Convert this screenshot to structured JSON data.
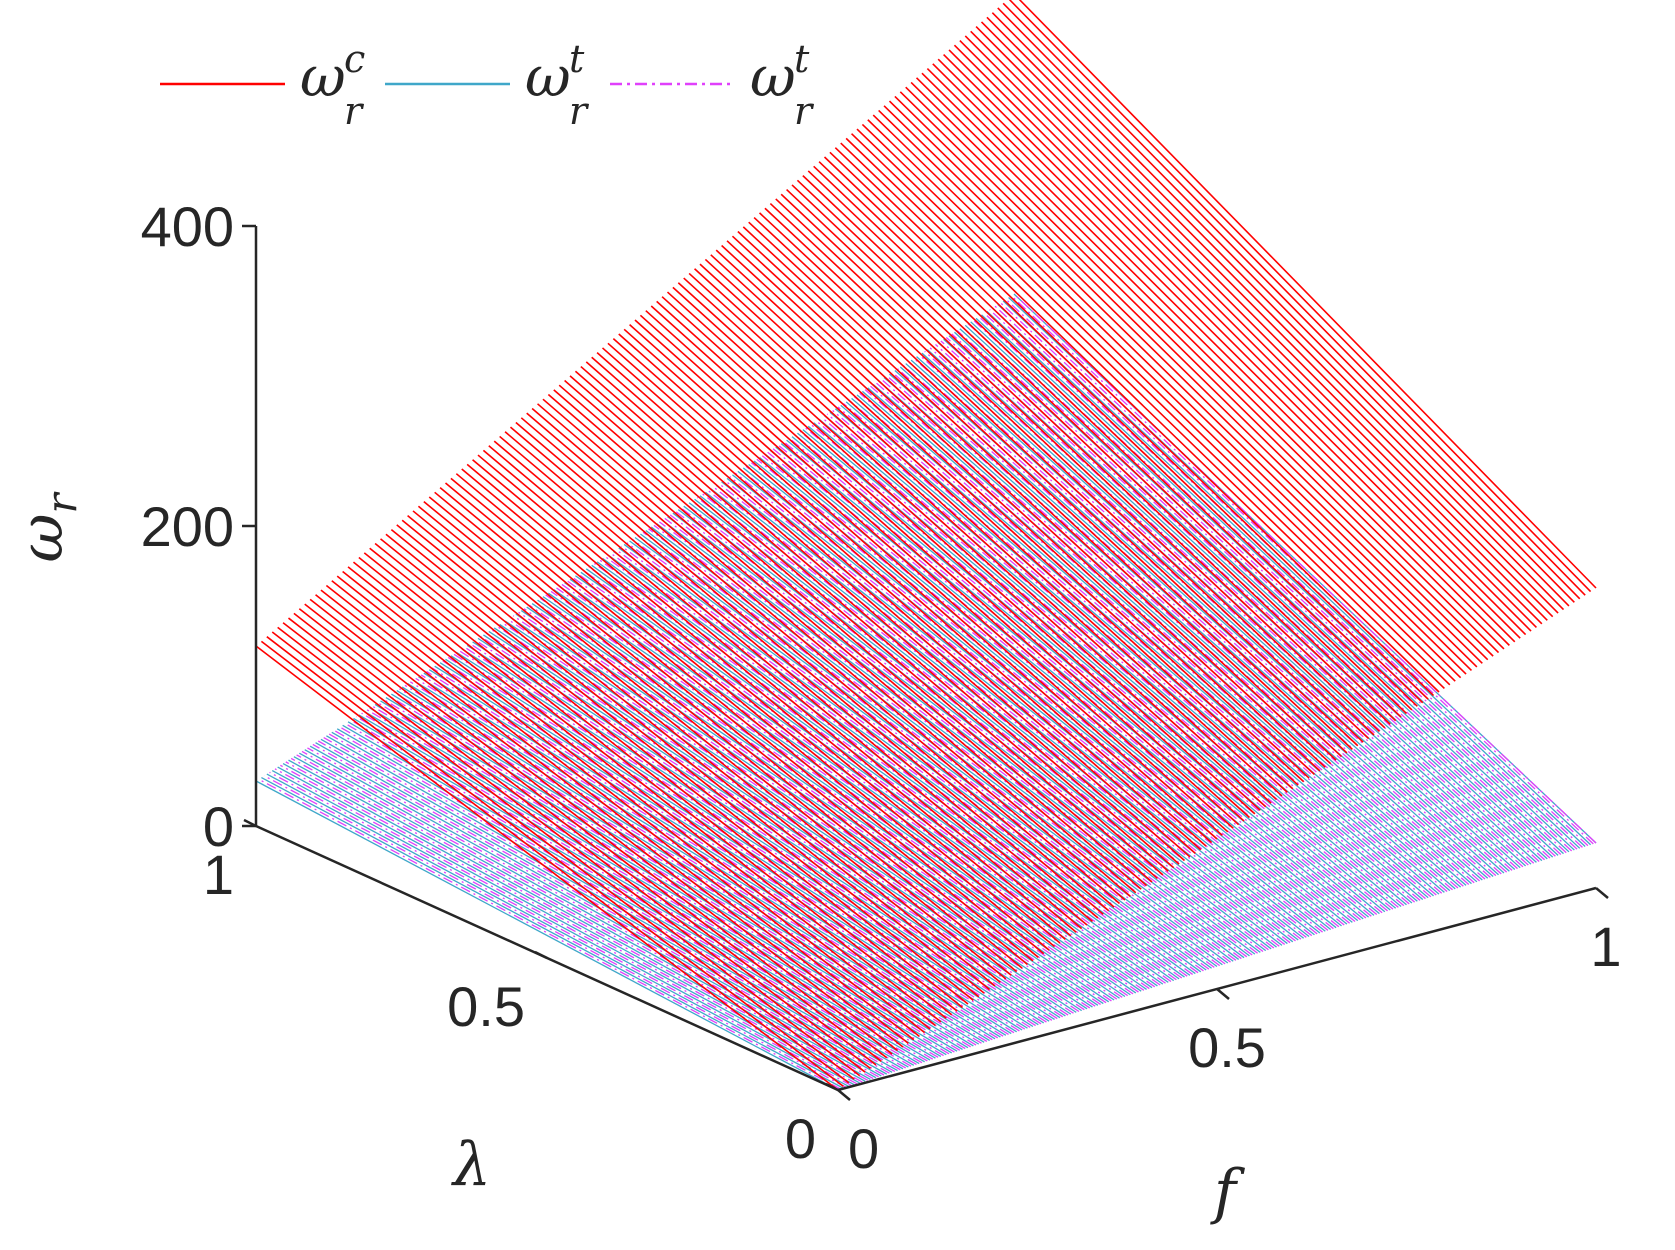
{
  "chart_data": {
    "type": "mesh3d",
    "title": "",
    "x_axis": {
      "label": "f",
      "ticks": [
        0,
        0.5,
        1
      ],
      "tick_labels": [
        "0",
        "0.5",
        "1"
      ],
      "range": [
        0,
        1
      ]
    },
    "y_axis": {
      "label": "λ",
      "ticks": [
        0,
        0.5,
        1
      ],
      "tick_labels": [
        "0",
        "0.5",
        "1"
      ],
      "range": [
        0,
        1
      ]
    },
    "z_axis": {
      "label_base": "ω",
      "label_sub": "r",
      "ticks": [
        0,
        200,
        400
      ],
      "tick_labels": [
        "0",
        "200",
        "400"
      ],
      "range": [
        0,
        400
      ]
    },
    "legend": {
      "placement": "top-left",
      "entries": [
        {
          "base": "ω",
          "sub": "r",
          "sup": "c",
          "color": "#ff0000",
          "style": "solid"
        },
        {
          "base": "ω",
          "sub": "r",
          "sup": "t",
          "color": "#3fa7c9",
          "style": "solid"
        },
        {
          "base": "ω",
          "sub": "r",
          "sup": "t",
          "color": "#e040fb",
          "style": "dashdot"
        }
      ]
    },
    "series": [
      {
        "color": "#ff0000",
        "corners": {
          "f0_l0": 0,
          "f1_l0": 200,
          "f0_l1": 120,
          "f1_l1": 420
        }
      },
      {
        "color": "#3fa7c9",
        "corners": {
          "f0_l0": 0,
          "f1_l0": 30,
          "f0_l1": 30,
          "f1_l1": 220
        }
      },
      {
        "color": "#e040fb",
        "corners": {
          "f0_l0": 0,
          "f1_l0": 30,
          "f0_l1": 30,
          "f1_l1": 220
        }
      }
    ]
  }
}
